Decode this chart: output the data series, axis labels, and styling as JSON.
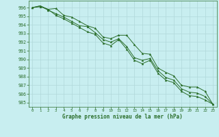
{
  "title": "Graphe pression niveau de la mer (hPa)",
  "background_color": "#c8eef0",
  "grid_color": "#b0d8da",
  "line_color": "#2a6e2a",
  "marker_color": "#2a6e2a",
  "xlim": [
    -0.5,
    23.5
  ],
  "ylim": [
    984.5,
    996.8
  ],
  "yticks": [
    985,
    986,
    987,
    988,
    989,
    990,
    991,
    992,
    993,
    994,
    995,
    996
  ],
  "xticks": [
    0,
    1,
    2,
    3,
    4,
    5,
    6,
    7,
    8,
    9,
    10,
    11,
    12,
    13,
    14,
    15,
    16,
    17,
    18,
    19,
    20,
    21,
    22,
    23
  ],
  "series1": [
    996.0,
    996.2,
    995.8,
    995.9,
    995.1,
    994.9,
    994.4,
    993.9,
    993.6,
    992.6,
    992.4,
    992.8,
    992.8,
    991.7,
    990.7,
    990.6,
    989.0,
    988.5,
    988.1,
    987.0,
    986.8,
    986.8,
    986.3,
    984.8
  ],
  "series2": [
    996.0,
    996.2,
    995.7,
    995.3,
    994.9,
    994.4,
    993.9,
    993.8,
    993.1,
    992.3,
    992.0,
    992.4,
    991.5,
    990.2,
    989.9,
    990.1,
    988.7,
    987.9,
    987.6,
    986.6,
    986.2,
    986.1,
    985.7,
    984.8
  ],
  "series3": [
    996.0,
    996.1,
    995.8,
    995.1,
    994.7,
    994.2,
    993.7,
    993.2,
    992.9,
    991.9,
    991.6,
    992.3,
    991.2,
    989.9,
    989.5,
    989.9,
    988.4,
    987.6,
    987.3,
    986.3,
    985.8,
    985.7,
    985.3,
    984.8
  ]
}
